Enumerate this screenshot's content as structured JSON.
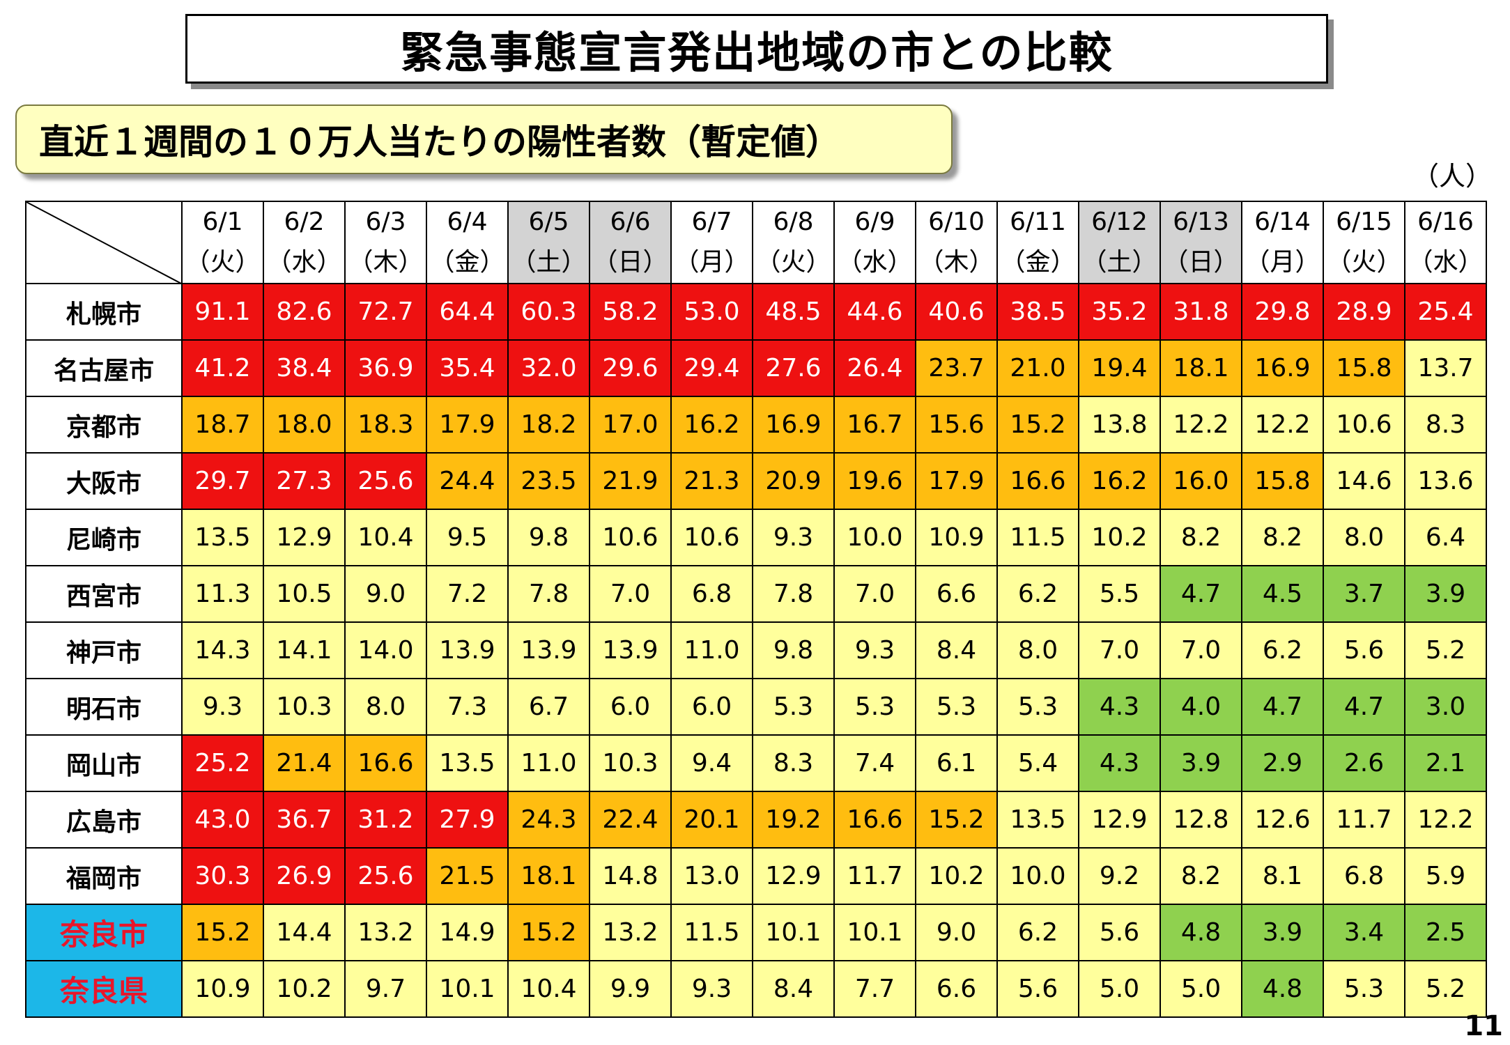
{
  "title": "緊急事態宣言発出地域の市との比較",
  "subtitle": "直近１週間の１０万人当たりの陽性者数（暫定値）",
  "unit": "（人）",
  "page_number": "11",
  "colors": {
    "red": "#ee1111",
    "orange": "#ffbd10",
    "yellow": "#ffff9c",
    "green": "#8fd14f",
    "weekend_header": "#d3d3d3",
    "nara_header": "#1cb7e8",
    "nara_text": "#e8162a"
  },
  "chart_data": {
    "type": "table",
    "title": "直近１週間の１０万人当たりの陽性者数（暫定値）",
    "columns": [
      {
        "date": "6/1",
        "day": "（火）",
        "weekend": false
      },
      {
        "date": "6/2",
        "day": "（水）",
        "weekend": false
      },
      {
        "date": "6/3",
        "day": "（木）",
        "weekend": false
      },
      {
        "date": "6/4",
        "day": "（金）",
        "weekend": false
      },
      {
        "date": "6/5",
        "day": "（土）",
        "weekend": true
      },
      {
        "date": "6/6",
        "day": "（日）",
        "weekend": true
      },
      {
        "date": "6/7",
        "day": "（月）",
        "weekend": false
      },
      {
        "date": "6/8",
        "day": "（火）",
        "weekend": false
      },
      {
        "date": "6/9",
        "day": "（水）",
        "weekend": false
      },
      {
        "date": "6/10",
        "day": "（木）",
        "weekend": false
      },
      {
        "date": "6/11",
        "day": "（金）",
        "weekend": false
      },
      {
        "date": "6/12",
        "day": "（土）",
        "weekend": true
      },
      {
        "date": "6/13",
        "day": "（日）",
        "weekend": true
      },
      {
        "date": "6/14",
        "day": "（月）",
        "weekend": false
      },
      {
        "date": "6/15",
        "day": "（火）",
        "weekend": false
      },
      {
        "date": "6/16",
        "day": "（水）",
        "weekend": false
      }
    ],
    "rows": [
      {
        "name": "札幌市",
        "highlight": false,
        "values": [
          "91.1",
          "82.6",
          "72.7",
          "64.4",
          "60.3",
          "58.2",
          "53.0",
          "48.5",
          "44.6",
          "40.6",
          "38.5",
          "35.2",
          "31.8",
          "29.8",
          "28.9",
          "25.4"
        ],
        "colors": [
          "red",
          "red",
          "red",
          "red",
          "red",
          "red",
          "red",
          "red",
          "red",
          "red",
          "red",
          "red",
          "red",
          "red",
          "red",
          "red"
        ]
      },
      {
        "name": "名古屋市",
        "highlight": false,
        "values": [
          "41.2",
          "38.4",
          "36.9",
          "35.4",
          "32.0",
          "29.6",
          "29.4",
          "27.6",
          "26.4",
          "23.7",
          "21.0",
          "19.4",
          "18.1",
          "16.9",
          "15.8",
          "13.7"
        ],
        "colors": [
          "red",
          "red",
          "red",
          "red",
          "red",
          "red",
          "red",
          "red",
          "red",
          "orange",
          "orange",
          "orange",
          "orange",
          "orange",
          "orange",
          "yellow"
        ]
      },
      {
        "name": "京都市",
        "highlight": false,
        "values": [
          "18.7",
          "18.0",
          "18.3",
          "17.9",
          "18.2",
          "17.0",
          "16.2",
          "16.9",
          "16.7",
          "15.6",
          "15.2",
          "13.8",
          "12.2",
          "12.2",
          "10.6",
          "8.3"
        ],
        "colors": [
          "orange",
          "orange",
          "orange",
          "orange",
          "orange",
          "orange",
          "orange",
          "orange",
          "orange",
          "orange",
          "orange",
          "yellow",
          "yellow",
          "yellow",
          "yellow",
          "yellow"
        ]
      },
      {
        "name": "大阪市",
        "highlight": false,
        "values": [
          "29.7",
          "27.3",
          "25.6",
          "24.4",
          "23.5",
          "21.9",
          "21.3",
          "20.9",
          "19.6",
          "17.9",
          "16.6",
          "16.2",
          "16.0",
          "15.8",
          "14.6",
          "13.6"
        ],
        "colors": [
          "red",
          "red",
          "red",
          "orange",
          "orange",
          "orange",
          "orange",
          "orange",
          "orange",
          "orange",
          "orange",
          "orange",
          "orange",
          "orange",
          "yellow",
          "yellow"
        ]
      },
      {
        "name": "尼崎市",
        "highlight": false,
        "values": [
          "13.5",
          "12.9",
          "10.4",
          "9.5",
          "9.8",
          "10.6",
          "10.6",
          "9.3",
          "10.0",
          "10.9",
          "11.5",
          "10.2",
          "8.2",
          "8.2",
          "8.0",
          "6.4"
        ],
        "colors": [
          "yellow",
          "yellow",
          "yellow",
          "yellow",
          "yellow",
          "yellow",
          "yellow",
          "yellow",
          "yellow",
          "yellow",
          "yellow",
          "yellow",
          "yellow",
          "yellow",
          "yellow",
          "yellow"
        ]
      },
      {
        "name": "西宮市",
        "highlight": false,
        "values": [
          "11.3",
          "10.5",
          "9.0",
          "7.2",
          "7.8",
          "7.0",
          "6.8",
          "7.8",
          "7.0",
          "6.6",
          "6.2",
          "5.5",
          "4.7",
          "4.5",
          "3.7",
          "3.9"
        ],
        "colors": [
          "yellow",
          "yellow",
          "yellow",
          "yellow",
          "yellow",
          "yellow",
          "yellow",
          "yellow",
          "yellow",
          "yellow",
          "yellow",
          "yellow",
          "green",
          "green",
          "green",
          "green"
        ]
      },
      {
        "name": "神戸市",
        "highlight": false,
        "values": [
          "14.3",
          "14.1",
          "14.0",
          "13.9",
          "13.9",
          "13.9",
          "11.0",
          "9.8",
          "9.3",
          "8.4",
          "8.0",
          "7.0",
          "7.0",
          "6.2",
          "5.6",
          "5.2"
        ],
        "colors": [
          "yellow",
          "yellow",
          "yellow",
          "yellow",
          "yellow",
          "yellow",
          "yellow",
          "yellow",
          "yellow",
          "yellow",
          "yellow",
          "yellow",
          "yellow",
          "yellow",
          "yellow",
          "yellow"
        ]
      },
      {
        "name": "明石市",
        "highlight": false,
        "values": [
          "9.3",
          "10.3",
          "8.0",
          "7.3",
          "6.7",
          "6.0",
          "6.0",
          "5.3",
          "5.3",
          "5.3",
          "5.3",
          "4.3",
          "4.0",
          "4.7",
          "4.7",
          "3.0"
        ],
        "colors": [
          "yellow",
          "yellow",
          "yellow",
          "yellow",
          "yellow",
          "yellow",
          "yellow",
          "yellow",
          "yellow",
          "yellow",
          "yellow",
          "green",
          "green",
          "green",
          "green",
          "green"
        ]
      },
      {
        "name": "岡山市",
        "highlight": false,
        "values": [
          "25.2",
          "21.4",
          "16.6",
          "13.5",
          "11.0",
          "10.3",
          "9.4",
          "8.3",
          "7.4",
          "6.1",
          "5.4",
          "4.3",
          "3.9",
          "2.9",
          "2.6",
          "2.1"
        ],
        "colors": [
          "red",
          "orange",
          "orange",
          "yellow",
          "yellow",
          "yellow",
          "yellow",
          "yellow",
          "yellow",
          "yellow",
          "yellow",
          "green",
          "green",
          "green",
          "green",
          "green"
        ]
      },
      {
        "name": "広島市",
        "highlight": false,
        "values": [
          "43.0",
          "36.7",
          "31.2",
          "27.9",
          "24.3",
          "22.4",
          "20.1",
          "19.2",
          "16.6",
          "15.2",
          "13.5",
          "12.9",
          "12.8",
          "12.6",
          "11.7",
          "12.2"
        ],
        "colors": [
          "red",
          "red",
          "red",
          "red",
          "orange",
          "orange",
          "orange",
          "orange",
          "orange",
          "orange",
          "yellow",
          "yellow",
          "yellow",
          "yellow",
          "yellow",
          "yellow"
        ]
      },
      {
        "name": "福岡市",
        "highlight": false,
        "values": [
          "30.3",
          "26.9",
          "25.6",
          "21.5",
          "18.1",
          "14.8",
          "13.0",
          "12.9",
          "11.7",
          "10.2",
          "10.0",
          "9.2",
          "8.2",
          "8.1",
          "6.8",
          "5.9"
        ],
        "colors": [
          "red",
          "red",
          "red",
          "orange",
          "orange",
          "yellow",
          "yellow",
          "yellow",
          "yellow",
          "yellow",
          "yellow",
          "yellow",
          "yellow",
          "yellow",
          "yellow",
          "yellow"
        ]
      },
      {
        "name": "奈良市",
        "highlight": true,
        "values": [
          "15.2",
          "14.4",
          "13.2",
          "14.9",
          "15.2",
          "13.2",
          "11.5",
          "10.1",
          "10.1",
          "9.0",
          "6.2",
          "5.6",
          "4.8",
          "3.9",
          "3.4",
          "2.5"
        ],
        "colors": [
          "orange",
          "yellow",
          "yellow",
          "yellow",
          "orange",
          "yellow",
          "yellow",
          "yellow",
          "yellow",
          "yellow",
          "yellow",
          "yellow",
          "green",
          "green",
          "green",
          "green"
        ]
      },
      {
        "name": "奈良県",
        "highlight": true,
        "values": [
          "10.9",
          "10.2",
          "9.7",
          "10.1",
          "10.4",
          "9.9",
          "9.3",
          "8.4",
          "7.7",
          "6.6",
          "5.6",
          "5.0",
          "5.0",
          "4.8",
          "5.3",
          "5.2"
        ],
        "colors": [
          "yellow",
          "yellow",
          "yellow",
          "yellow",
          "yellow",
          "yellow",
          "yellow",
          "yellow",
          "yellow",
          "yellow",
          "yellow",
          "yellow",
          "yellow",
          "green",
          "yellow",
          "yellow"
        ]
      }
    ]
  }
}
